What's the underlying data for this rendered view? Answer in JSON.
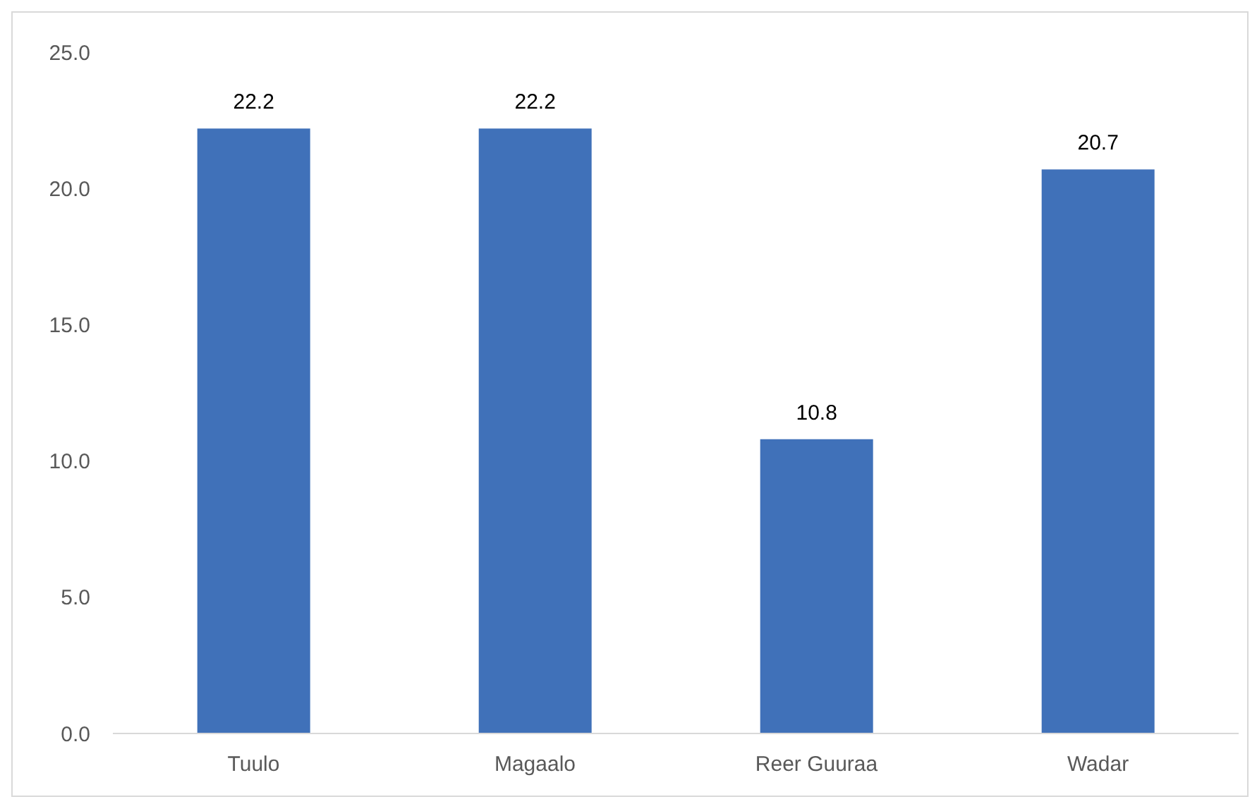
{
  "chart_data": {
    "type": "bar",
    "categories": [
      "Tuulo",
      "Magaalo",
      "Reer Guuraa",
      "Wadar"
    ],
    "values": [
      22.2,
      22.2,
      10.8,
      20.7
    ],
    "color": "#4071b9",
    "ylim": [
      0,
      25
    ],
    "yticks": [
      {
        "value": 0,
        "label": "0.0"
      },
      {
        "value": 5,
        "label": "5.0"
      },
      {
        "value": 10,
        "label": "10.0"
      },
      {
        "value": 15,
        "label": "15.0"
      },
      {
        "value": 20,
        "label": "20.0"
      },
      {
        "value": 25,
        "label": "25.0"
      }
    ],
    "data_labels": true
  }
}
